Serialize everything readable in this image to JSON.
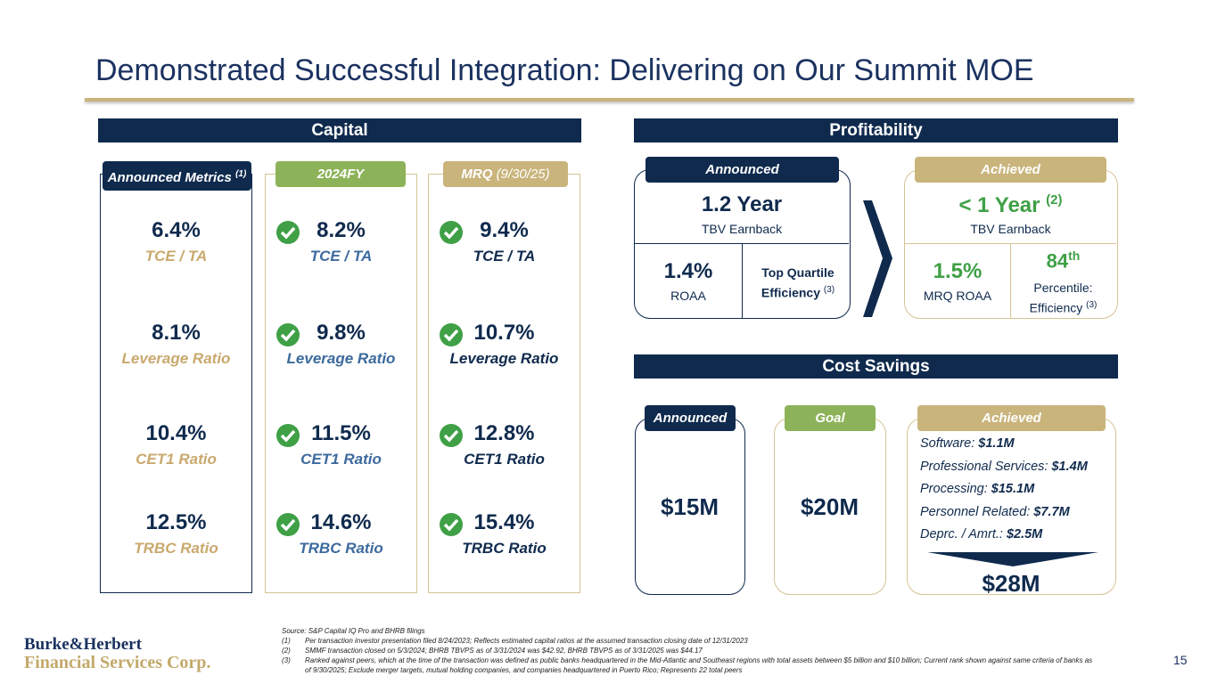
{
  "title": "Demonstrated Successful Integration: Delivering on Our Summit MOE",
  "capital": {
    "header": "Capital",
    "columns": [
      {
        "label": "Announced Metrics",
        "note": "(1)",
        "metrics": [
          {
            "value": "6.4%",
            "label": "TCE / TA"
          },
          {
            "value": "8.1%",
            "label": "Leverage Ratio"
          },
          {
            "value": "10.4%",
            "label": "CET1 Ratio"
          },
          {
            "value": "12.5%",
            "label": "TRBC Ratio"
          }
        ]
      },
      {
        "label": "2024FY",
        "metrics": [
          {
            "value": "8.2%",
            "label": "TCE / TA"
          },
          {
            "value": "9.8%",
            "label": "Leverage Ratio"
          },
          {
            "value": "11.5%",
            "label": "CET1 Ratio"
          },
          {
            "value": "14.6%",
            "label": "TRBC Ratio"
          }
        ]
      },
      {
        "label": "MRQ",
        "note": "(9/30/25)",
        "metrics": [
          {
            "value": "9.4%",
            "label": "TCE / TA"
          },
          {
            "value": "10.7%",
            "label": "Leverage Ratio"
          },
          {
            "value": "12.8%",
            "label": "CET1 Ratio"
          },
          {
            "value": "15.4%",
            "label": "TRBC Ratio"
          }
        ]
      }
    ]
  },
  "profitability": {
    "header": "Profitability",
    "announced": {
      "tab": "Announced",
      "headline": "1.2 Year",
      "headline_sub": "TBV Earnback",
      "left_value": "1.4%",
      "left_label": "ROAA",
      "right_label": "Top Quartile Efficiency",
      "right_note": "(3)"
    },
    "achieved": {
      "tab": "Achieved",
      "headline": "< 1 Year",
      "headline_note": "(2)",
      "headline_sub": "TBV Earnback",
      "left_value": "1.5%",
      "left_label": "MRQ ROAA",
      "right_value": "84",
      "right_suffix": "th",
      "right_label": "Percentile: Efficiency",
      "right_note": "(3)"
    }
  },
  "cost_savings": {
    "header": "Cost Savings",
    "announced": {
      "tab": "Announced",
      "value": "$15M"
    },
    "goal": {
      "tab": "Goal",
      "value": "$20M"
    },
    "achieved": {
      "tab": "Achieved",
      "items": [
        {
          "label": "Software:",
          "value": "$1.1M"
        },
        {
          "label": "Professional Services:",
          "value": "$1.4M"
        },
        {
          "label": "Processing:",
          "value": "$15.1M"
        },
        {
          "label": "Personnel Related:",
          "value": "$7.7M"
        },
        {
          "label": "Deprc. / Amrt.:",
          "value": "$2.5M"
        }
      ],
      "total": "$28M"
    }
  },
  "footnotes": {
    "source": "Source: S&P Capital IQ Pro and BHRB filings",
    "notes": [
      {
        "num": "(1)",
        "text": "Per transaction investor presentation filed 8/24/2023; Reflects estimated capital ratios at the assumed transaction closing date of 12/31/2023"
      },
      {
        "num": "(2)",
        "text": "SMMF transaction closed on 5/3/2024; BHRB TBVPS as of 3/31/2024 was $42.92, BHRB TBVPS as of 3/31/2025 was $44.17"
      },
      {
        "num": "(3)",
        "text": "Ranked against peers, which at the time of the transaction was defined as public banks headquartered in the Mid-Atlantic and Southeast regions with total assets between $5 billion and $10 billion; Current rank shown against same criteria of banks as of 9/30/2025; Exclude merger targets, mutual holding companies, and companies headquartered in Puerto Rico; Represents 22 total peers"
      }
    ]
  },
  "logo": {
    "line1": "Burke&Herbert",
    "line2": "Financial Services Corp."
  },
  "page_number": "15"
}
